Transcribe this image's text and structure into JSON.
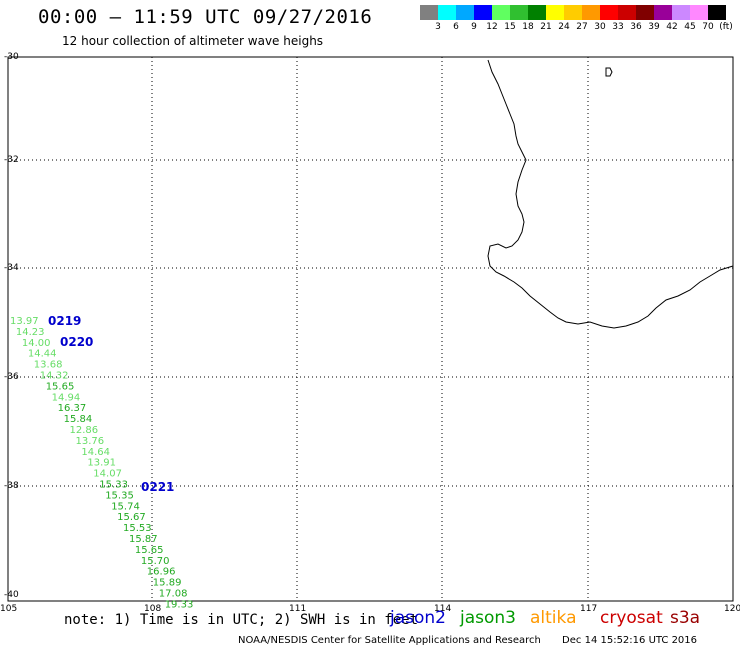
{
  "header": {
    "title": "00:00 – 11:59 UTC 09/27/2016",
    "subtitle": "12 hour collection of altimeter wave heighs"
  },
  "legend": {
    "colors": [
      "#808080",
      "#00ffff",
      "#00a8ff",
      "#0000ff",
      "#60ff60",
      "#30c030",
      "#008000",
      "#ffff00",
      "#ffcc00",
      "#ff9900",
      "#ff0000",
      "#cc0000",
      "#800000",
      "#990099",
      "#cc88ff",
      "#ff88ff",
      "#000000"
    ],
    "labels": [
      "3",
      "6",
      "9",
      "12",
      "15",
      "18",
      "21",
      "24",
      "27",
      "30",
      "33",
      "36",
      "39",
      "42",
      "45",
      "70"
    ],
    "unit": "(ft)"
  },
  "axes": {
    "lon_labels": [
      "105",
      "108",
      "111",
      "114",
      "117",
      "120"
    ],
    "lat_labels": [
      "-30",
      "-32",
      "-34",
      "-36",
      "-38",
      "-40"
    ]
  },
  "passes": [
    {
      "label": "0219",
      "color": "#0000cc"
    },
    {
      "label": "0220",
      "color": "#0000cc"
    },
    {
      "label": "0221",
      "color": "#0000cc"
    }
  ],
  "swh_values": [
    {
      "v": "13.97",
      "c": "#66dd66"
    },
    {
      "v": "14.23",
      "c": "#66dd66"
    },
    {
      "v": "14.00",
      "c": "#66dd66"
    },
    {
      "v": "14.44",
      "c": "#66dd66"
    },
    {
      "v": "13.68",
      "c": "#66dd66"
    },
    {
      "v": "14.32",
      "c": "#66dd66"
    },
    {
      "v": "15.65",
      "c": "#22aa22"
    },
    {
      "v": "14.94",
      "c": "#66dd66"
    },
    {
      "v": "16.37",
      "c": "#22aa22"
    },
    {
      "v": "15.84",
      "c": "#22aa22"
    },
    {
      "v": "12.86",
      "c": "#66dd66"
    },
    {
      "v": "13.76",
      "c": "#66dd66"
    },
    {
      "v": "14.64",
      "c": "#66dd66"
    },
    {
      "v": "13.91",
      "c": "#66dd66"
    },
    {
      "v": "14.07",
      "c": "#66dd66"
    },
    {
      "v": "15.33",
      "c": "#22aa22"
    },
    {
      "v": "15.35",
      "c": "#22aa22"
    },
    {
      "v": "15.74",
      "c": "#22aa22"
    },
    {
      "v": "15.67",
      "c": "#22aa22"
    },
    {
      "v": "15.53",
      "c": "#22aa22"
    },
    {
      "v": "15.87",
      "c": "#22aa22"
    },
    {
      "v": "15.65",
      "c": "#22aa22"
    },
    {
      "v": "15.70",
      "c": "#22aa22"
    },
    {
      "v": "16.96",
      "c": "#22aa22"
    },
    {
      "v": "15.89",
      "c": "#22aa22"
    },
    {
      "v": "17.08",
      "c": "#22aa22"
    },
    {
      "v": "19.33",
      "c": "#22aa22"
    }
  ],
  "footer": {
    "note": "note: 1) Time is in UTC; 2) SWH is in feet",
    "credit": "NOAA/NESDIS Center for Satellite Applications and Research",
    "timestamp": "Dec 14 15:52:16 UTC 2016"
  },
  "satellites": [
    {
      "name": "jason2",
      "color": "#0000cc"
    },
    {
      "name": "jason3",
      "color": "#009900"
    },
    {
      "name": "altika",
      "color": "#ff9900"
    },
    {
      "name": "cryosat",
      "color": "#cc0000"
    },
    {
      "name": "s3a",
      "color": "#990000"
    }
  ]
}
